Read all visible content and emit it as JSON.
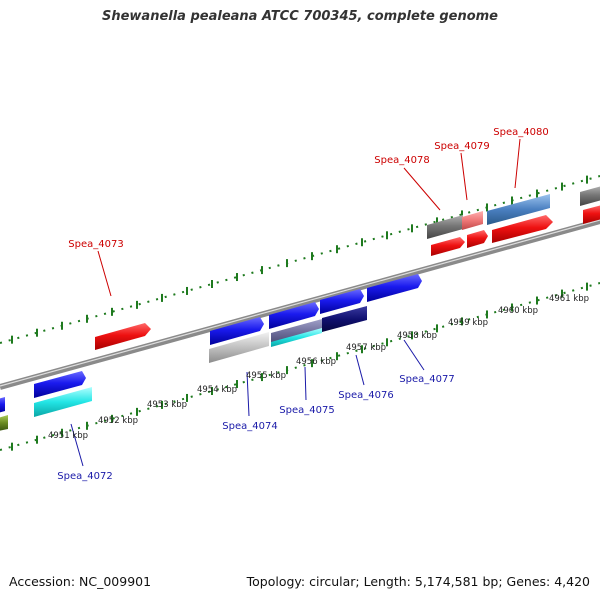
{
  "title": "Shewanella pealeana ATCC 700345, complete genome",
  "footer": {
    "accession": "Accession: NC_009901",
    "summary": "Topology: circular; Length: 5,174,581 bp; Genes: 4,420"
  },
  "colors": {
    "backbone": "#8a8a8a",
    "tick_dot": "#1e7a1e",
    "label_forward": "#cc0000",
    "label_reverse": "#1a1aa8",
    "red": "#ee1111",
    "pink": "#ee7777",
    "blue": "#1a1aee",
    "navy": "#101070",
    "cyan": "#22e5e5",
    "gray": "#777777",
    "silver": "#c0c0c0",
    "steel": "#4a7fc0",
    "olive": "#6a8a22"
  },
  "scale_labels": [
    "4951 kbp",
    "4952 kbp",
    "4953 kbp",
    "4954 kbp",
    "4955 kbp",
    "4956 kbp",
    "4957 kbp",
    "4958 kbp",
    "4959 kbp",
    "4960 kbp",
    "4961 kbp"
  ],
  "gene_labels": [
    "Spea_4072",
    "Spea_4073",
    "Spea_4074",
    "Spea_4075",
    "Spea_4076",
    "Spea_4077",
    "Spea_4078",
    "Spea_4079",
    "Spea_4080"
  ]
}
